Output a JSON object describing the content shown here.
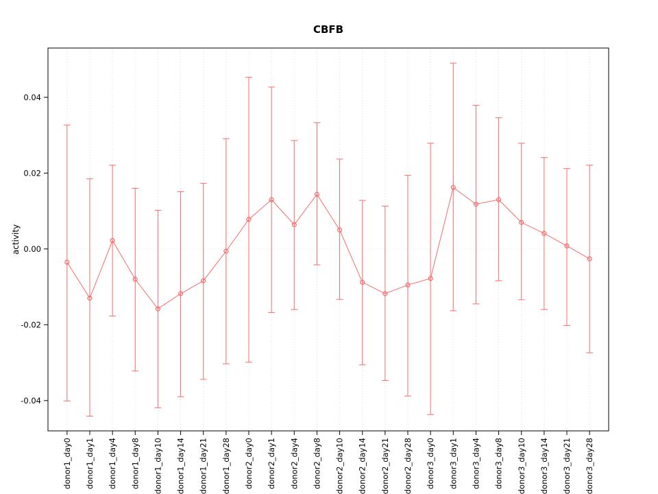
{
  "page": {
    "background": "#ffffff"
  },
  "chart_data": {
    "type": "line",
    "title": "CBFB",
    "xlabel": "",
    "ylabel": "activity",
    "ylim": [
      -0.048,
      0.053
    ],
    "yticks": [
      -0.04,
      -0.02,
      0,
      0.02,
      0.04
    ],
    "ytick_labels": [
      "-0.04",
      "-0.02",
      "0.00",
      "0.02",
      "0.04"
    ],
    "grid": "vertical dotted gridline per category; faint dotted horizontal line at 0",
    "legend": "none",
    "marker": "open-circle",
    "series_color": "#fb6a6a",
    "grid_color": "#dcdcdc",
    "zero_line_color": "#ececec",
    "axis_color": "#000000",
    "categories": [
      "donor1_day0",
      "donor1_day1",
      "donor1_day4",
      "donor1_day8",
      "donor1_day10",
      "donor1_day14",
      "donor1_day21",
      "donor1_day28",
      "donor2_day0",
      "donor2_day1",
      "donor2_day4",
      "donor2_day8",
      "donor2_day10",
      "donor2_day14",
      "donor2_day21",
      "donor2_day28",
      "donor3_day0",
      "donor3_day1",
      "donor3_day4",
      "donor3_day8",
      "donor3_day10",
      "donor3_day14",
      "donor3_day21",
      "donor3_day28"
    ],
    "series": [
      {
        "name": "activity",
        "values": [
          -0.0035,
          -0.013,
          0.0022,
          -0.008,
          -0.0158,
          -0.0118,
          -0.0084,
          -0.0006,
          0.0078,
          0.013,
          0.0064,
          0.0144,
          0.005,
          -0.0088,
          -0.0118,
          -0.0095,
          -0.0078,
          0.0162,
          0.0118,
          0.013,
          0.007,
          0.0041,
          0.0008,
          -0.0026
        ],
        "error_high": [
          0.0327,
          0.0185,
          0.0221,
          0.016,
          0.0102,
          0.0151,
          0.0173,
          0.0291,
          0.0453,
          0.0427,
          0.0286,
          0.0333,
          0.0237,
          0.0128,
          0.0113,
          0.0194,
          0.0279,
          0.049,
          0.0379,
          0.0346,
          0.0279,
          0.0241,
          0.0212,
          0.0221
        ],
        "error_low": [
          -0.0401,
          -0.0441,
          -0.0177,
          -0.0322,
          -0.0419,
          -0.039,
          -0.0344,
          -0.0303,
          -0.0299,
          -0.0168,
          -0.016,
          -0.0042,
          -0.0133,
          -0.0306,
          -0.0347,
          -0.0388,
          -0.0437,
          -0.0163,
          -0.0145,
          -0.0084,
          -0.0134,
          -0.016,
          -0.0202,
          -0.0274
        ]
      }
    ]
  }
}
